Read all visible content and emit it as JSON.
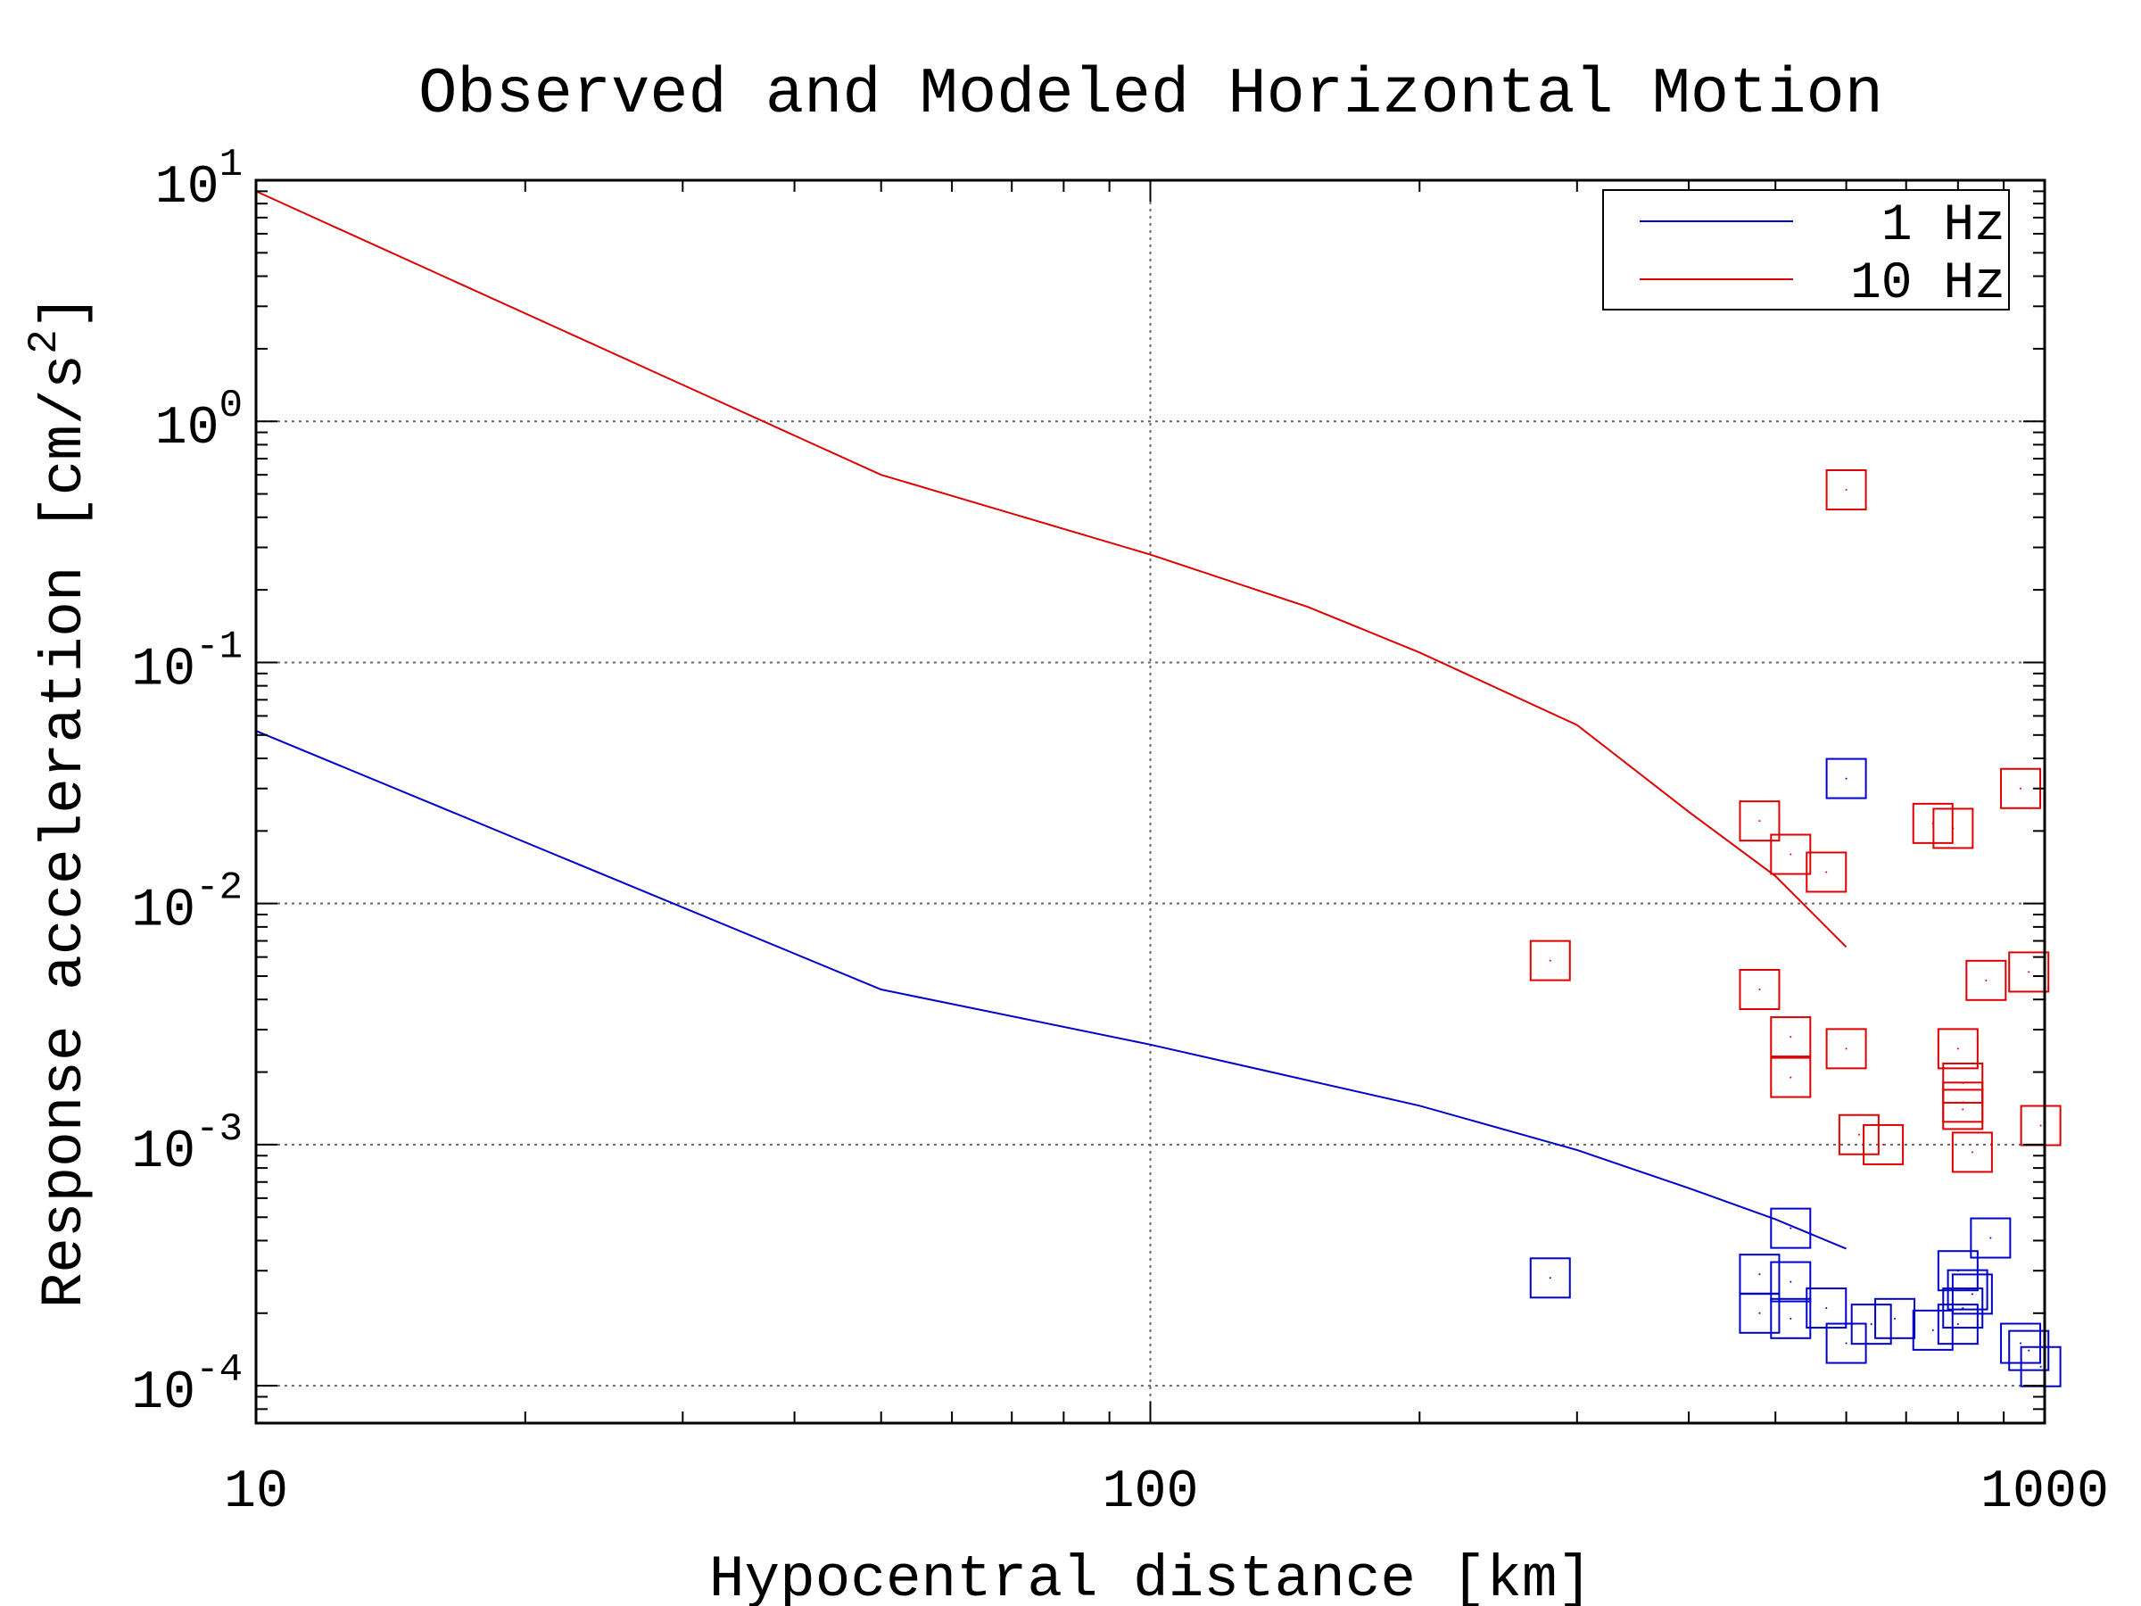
{
  "chart_data": {
    "type": "scatter",
    "title": "Observed and Modeled Horizontal Motion",
    "xlabel": "Hypocentral distance [km]",
    "ylabel": "Response acceleration [cm/s",
    "ylabel_sup": "2",
    "ylabel_end": "]",
    "xscale": "log",
    "yscale": "log",
    "xlim": [
      10,
      1000
    ],
    "ylim": [
      7e-05,
      10
    ],
    "grid": true,
    "legend_position": "top-right",
    "x_ticks": [
      {
        "value": 10,
        "label": "10"
      },
      {
        "value": 100,
        "label": "100"
      },
      {
        "value": 1000,
        "label": "1000"
      }
    ],
    "y_ticks": [
      {
        "value": 10,
        "base": "10",
        "exp": "1"
      },
      {
        "value": 1,
        "base": "10",
        "exp": "0"
      },
      {
        "value": 0.1,
        "base": "10",
        "exp": "-1"
      },
      {
        "value": 0.01,
        "base": "10",
        "exp": "-2"
      },
      {
        "value": 0.001,
        "base": "10",
        "exp": "-3"
      },
      {
        "value": 0.0001,
        "base": "10",
        "exp": "-4"
      }
    ],
    "series": [
      {
        "name": "1 Hz",
        "color": "#0000cc",
        "model_curve": [
          [
            10,
            0.052
          ],
          [
            50,
            0.0044
          ],
          [
            100,
            0.0026
          ],
          [
            200,
            0.00145
          ],
          [
            300,
            0.00095
          ],
          [
            400,
            0.00066
          ],
          [
            500,
            0.00049
          ],
          [
            600,
            0.00037
          ]
        ],
        "observations": [
          [
            280,
            0.00028
          ],
          [
            600,
            0.033
          ],
          [
            520,
            0.00045
          ],
          [
            800,
            0.0003
          ],
          [
            870,
            0.00041
          ],
          [
            480,
            0.00029
          ],
          [
            520,
            0.00027
          ],
          [
            480,
            0.0002
          ],
          [
            520,
            0.00019
          ],
          [
            570,
            0.00021
          ],
          [
            600,
            0.00015
          ],
          [
            640,
            0.00018
          ],
          [
            680,
            0.00019
          ],
          [
            750,
            0.00017
          ],
          [
            800,
            0.00018
          ],
          [
            810,
            0.00021
          ],
          [
            820,
            0.00025
          ],
          [
            830,
            0.00024
          ],
          [
            940,
            0.00015
          ],
          [
            960,
            0.00014
          ],
          [
            990,
            0.00012
          ]
        ]
      },
      {
        "name": "10 Hz",
        "color": "#dd0000",
        "model_curve": [
          [
            10,
            9.0
          ],
          [
            50,
            0.6
          ],
          [
            100,
            0.28
          ],
          [
            150,
            0.17
          ],
          [
            200,
            0.11
          ],
          [
            300,
            0.055
          ],
          [
            400,
            0.024
          ],
          [
            500,
            0.013
          ],
          [
            600,
            0.0066
          ]
        ],
        "observations": [
          [
            600,
            0.52
          ],
          [
            480,
            0.022
          ],
          [
            520,
            0.016
          ],
          [
            570,
            0.0135
          ],
          [
            750,
            0.0215
          ],
          [
            790,
            0.0205
          ],
          [
            940,
            0.03
          ],
          [
            280,
            0.0058
          ],
          [
            480,
            0.0044
          ],
          [
            520,
            0.0028
          ],
          [
            520,
            0.0019
          ],
          [
            600,
            0.0025
          ],
          [
            800,
            0.0025
          ],
          [
            810,
            0.0018
          ],
          [
            810,
            0.0015
          ],
          [
            810,
            0.0014
          ],
          [
            860,
            0.0048
          ],
          [
            960,
            0.0052
          ],
          [
            620,
            0.0011
          ],
          [
            660,
            0.001
          ],
          [
            830,
            0.00093
          ],
          [
            990,
            0.0012
          ]
        ]
      }
    ]
  }
}
